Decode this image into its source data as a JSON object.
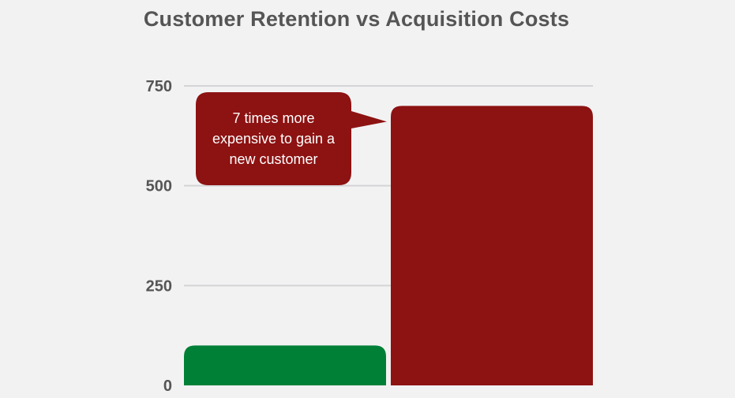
{
  "chart_data": {
    "type": "bar",
    "title": "Customer Retention vs Acquisition Costs",
    "xlabel": "",
    "ylabel": "",
    "categories": [
      "",
      ""
    ],
    "values": [
      100,
      700
    ],
    "colors": [
      "#008037",
      "#8d1212"
    ],
    "ylim": [
      0,
      750
    ],
    "yticks": [
      0,
      250,
      500,
      750
    ],
    "grid": true,
    "annotation": {
      "text_lines": [
        "7 times more",
        "expensive to gain a",
        "new customer"
      ],
      "color": "#8d1212",
      "points_to_category_index": 1
    }
  }
}
